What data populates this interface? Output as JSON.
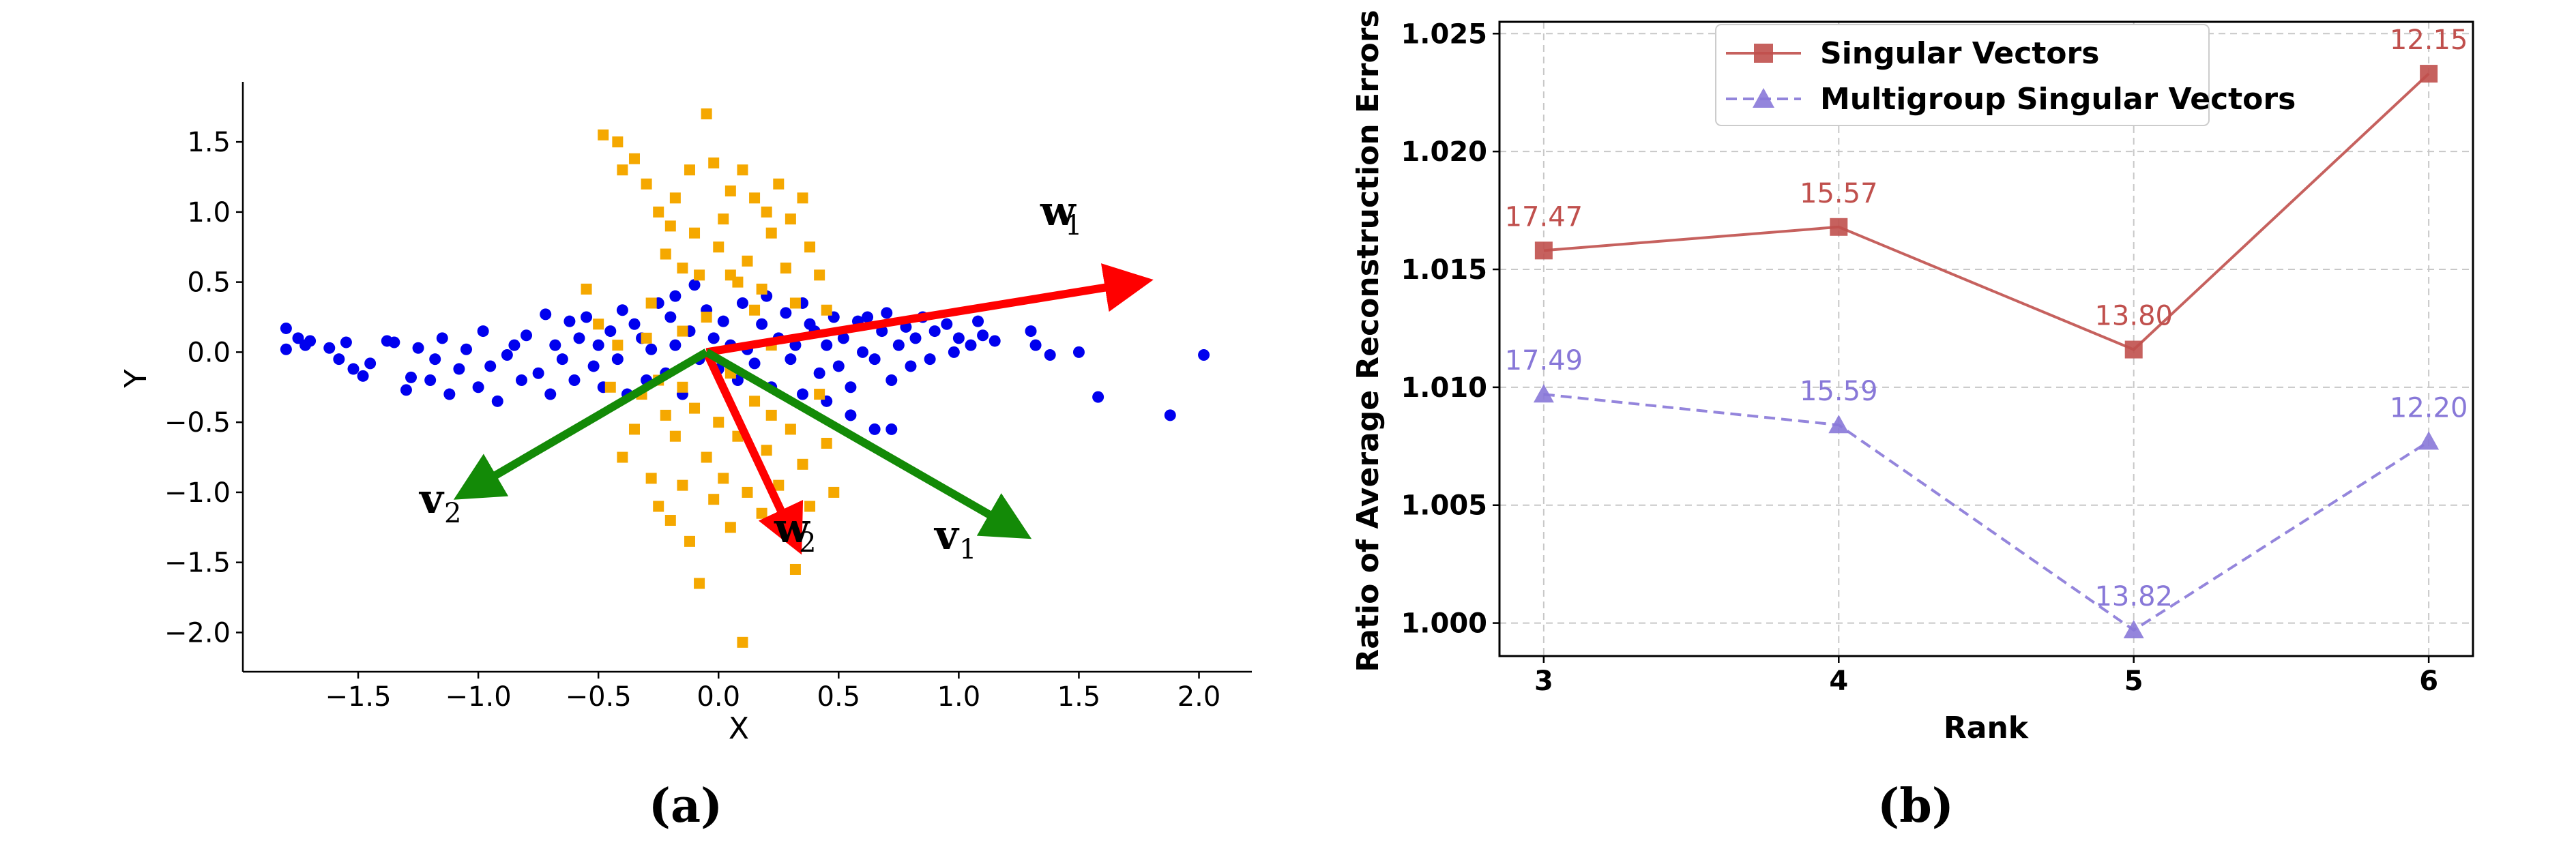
{
  "chart_data": [
    {
      "panel": "(a)",
      "type": "scatter",
      "xlabel": "X",
      "ylabel": "Y",
      "xlim": [
        -1.98,
        2.22
      ],
      "ylim": [
        -2.28,
        1.88
      ],
      "x_ticks": [
        -1.5,
        -1.0,
        -0.5,
        0.0,
        0.5,
        1.0,
        1.5,
        2.0
      ],
      "x_tick_labels": [
        "−1.5",
        "−1.0",
        "−0.5",
        "0.0",
        "0.5",
        "1.0",
        "1.5",
        "2.0"
      ],
      "y_ticks": [
        1.5,
        1.0,
        0.5,
        0.0,
        -0.5,
        -1.0,
        -1.5,
        -2.0
      ],
      "y_tick_labels": [
        "1.5",
        "1.0",
        "0.5",
        "0.0",
        "−0.5",
        "−1.0",
        "−1.5",
        "−2.0"
      ],
      "grid": false,
      "series": [
        {
          "color": "#0000ee",
          "marker": "circle",
          "points": [
            [
              -1.8,
              0.17
            ],
            [
              -1.8,
              0.02
            ],
            [
              -1.75,
              0.1
            ],
            [
              -1.72,
              0.05
            ],
            [
              -1.7,
              0.08
            ],
            [
              -1.62,
              0.03
            ],
            [
              -1.58,
              -0.05
            ],
            [
              -1.55,
              0.07
            ],
            [
              -1.52,
              -0.12
            ],
            [
              -1.48,
              -0.17
            ],
            [
              -1.45,
              -0.08
            ],
            [
              -1.38,
              0.08
            ],
            [
              -1.35,
              0.07
            ],
            [
              -1.3,
              -0.27
            ],
            [
              -1.28,
              -0.18
            ],
            [
              -1.25,
              0.03
            ],
            [
              -1.2,
              -0.2
            ],
            [
              -1.18,
              -0.05
            ],
            [
              -1.15,
              0.1
            ],
            [
              -1.12,
              -0.3
            ],
            [
              -1.08,
              -0.12
            ],
            [
              -1.05,
              0.02
            ],
            [
              -1.0,
              -0.25
            ],
            [
              -0.98,
              0.15
            ],
            [
              -0.95,
              -0.1
            ],
            [
              -0.92,
              -0.35
            ],
            [
              -0.88,
              -0.02
            ],
            [
              -0.85,
              0.05
            ],
            [
              -0.82,
              -0.2
            ],
            [
              -0.8,
              0.12
            ],
            [
              -0.75,
              -0.15
            ],
            [
              -0.72,
              0.27
            ],
            [
              -0.7,
              -0.3
            ],
            [
              -0.68,
              0.05
            ],
            [
              -0.65,
              -0.05
            ],
            [
              -0.62,
              0.22
            ],
            [
              -0.6,
              -0.2
            ],
            [
              -0.58,
              0.1
            ],
            [
              -0.55,
              0.25
            ],
            [
              -0.52,
              -0.1
            ],
            [
              -0.5,
              0.05
            ],
            [
              -0.48,
              -0.25
            ],
            [
              -0.45,
              0.15
            ],
            [
              -0.42,
              -0.05
            ],
            [
              -0.4,
              0.3
            ],
            [
              -0.38,
              -0.3
            ],
            [
              -0.35,
              0.2
            ],
            [
              -0.32,
              0.1
            ],
            [
              -0.3,
              -0.2
            ],
            [
              -0.28,
              0.02
            ],
            [
              -0.25,
              0.35
            ],
            [
              -0.22,
              -0.15
            ],
            [
              -0.2,
              0.25
            ],
            [
              -0.18,
              0.05
            ],
            [
              -0.15,
              -0.3
            ],
            [
              -0.12,
              0.15
            ],
            [
              -0.1,
              0.48
            ],
            [
              -0.08,
              -0.05
            ],
            [
              -0.05,
              0.3
            ],
            [
              -0.02,
              0.1
            ],
            [
              0.0,
              -0.12
            ],
            [
              0.02,
              0.22
            ],
            [
              0.05,
              0.05
            ],
            [
              0.08,
              -0.2
            ],
            [
              0.1,
              0.35
            ],
            [
              0.12,
              0.02
            ],
            [
              0.15,
              -0.08
            ],
            [
              0.18,
              0.2
            ],
            [
              0.2,
              0.4
            ],
            [
              0.22,
              -0.25
            ],
            [
              0.25,
              0.1
            ],
            [
              0.28,
              0.28
            ],
            [
              0.3,
              -0.05
            ],
            [
              0.32,
              0.05
            ],
            [
              0.35,
              -0.3
            ],
            [
              0.38,
              0.2
            ],
            [
              0.4,
              0.15
            ],
            [
              0.42,
              -0.15
            ],
            [
              0.45,
              0.05
            ],
            [
              0.48,
              0.25
            ],
            [
              0.5,
              -0.1
            ],
            [
              0.52,
              0.1
            ],
            [
              0.55,
              -0.25
            ],
            [
              0.58,
              0.22
            ],
            [
              0.6,
              0.0
            ],
            [
              0.62,
              0.25
            ],
            [
              0.65,
              -0.05
            ],
            [
              0.68,
              0.15
            ],
            [
              0.7,
              0.28
            ],
            [
              0.72,
              -0.2
            ],
            [
              0.75,
              0.05
            ],
            [
              0.78,
              0.18
            ],
            [
              0.8,
              -0.1
            ],
            [
              0.82,
              0.1
            ],
            [
              0.85,
              0.25
            ],
            [
              0.88,
              -0.05
            ],
            [
              0.9,
              0.15
            ],
            [
              0.95,
              0.2
            ],
            [
              0.98,
              0.0
            ],
            [
              1.0,
              0.1
            ],
            [
              1.05,
              0.05
            ],
            [
              1.08,
              0.22
            ],
            [
              1.1,
              0.12
            ],
            [
              1.15,
              0.08
            ],
            [
              1.3,
              0.15
            ],
            [
              1.32,
              0.05
            ],
            [
              1.38,
              -0.02
            ],
            [
              1.5,
              0.0
            ],
            [
              1.58,
              -0.32
            ],
            [
              1.88,
              -0.45
            ],
            [
              2.02,
              -0.02
            ],
            [
              0.65,
              -0.55
            ],
            [
              0.72,
              -0.55
            ],
            [
              0.55,
              -0.45
            ],
            [
              0.45,
              -0.35
            ],
            [
              -0.18,
              0.4
            ],
            [
              0.35,
              0.35
            ]
          ]
        },
        {
          "color": "#f5a800",
          "marker": "square",
          "points": [
            [
              -0.48,
              1.55
            ],
            [
              -0.42,
              1.5
            ],
            [
              -0.4,
              1.3
            ],
            [
              -0.35,
              1.38
            ],
            [
              -0.3,
              1.2
            ],
            [
              -0.25,
              1.0
            ],
            [
              -0.22,
              0.7
            ],
            [
              -0.2,
              0.9
            ],
            [
              -0.18,
              1.1
            ],
            [
              -0.15,
              0.6
            ],
            [
              -0.12,
              1.3
            ],
            [
              -0.1,
              0.85
            ],
            [
              -0.08,
              0.55
            ],
            [
              -0.05,
              1.7
            ],
            [
              -0.02,
              1.35
            ],
            [
              0.0,
              0.75
            ],
            [
              0.02,
              0.95
            ],
            [
              0.05,
              1.15
            ],
            [
              0.08,
              0.5
            ],
            [
              0.1,
              1.3
            ],
            [
              0.12,
              0.65
            ],
            [
              0.15,
              1.1
            ],
            [
              0.18,
              0.45
            ],
            [
              0.2,
              1.0
            ],
            [
              0.22,
              0.85
            ],
            [
              0.25,
              1.2
            ],
            [
              0.28,
              0.6
            ],
            [
              0.3,
              0.95
            ],
            [
              0.32,
              0.35
            ],
            [
              0.35,
              1.1
            ],
            [
              0.38,
              0.75
            ],
            [
              -0.55,
              0.45
            ],
            [
              -0.5,
              0.2
            ],
            [
              0.42,
              0.55
            ],
            [
              0.45,
              0.3
            ],
            [
              -0.4,
              -0.75
            ],
            [
              -0.35,
              -0.55
            ],
            [
              -0.32,
              -0.3
            ],
            [
              -0.28,
              -0.9
            ],
            [
              -0.25,
              -1.1
            ],
            [
              -0.22,
              -0.45
            ],
            [
              -0.2,
              -1.2
            ],
            [
              -0.18,
              -0.6
            ],
            [
              -0.15,
              -0.95
            ],
            [
              -0.12,
              -1.35
            ],
            [
              -0.1,
              -0.4
            ],
            [
              -0.08,
              -1.65
            ],
            [
              -0.05,
              -0.75
            ],
            [
              -0.02,
              -1.05
            ],
            [
              0.0,
              -0.5
            ],
            [
              0.02,
              -0.9
            ],
            [
              0.05,
              -1.25
            ],
            [
              0.08,
              -0.6
            ],
            [
              0.1,
              -2.07
            ],
            [
              0.12,
              -1.0
            ],
            [
              0.15,
              -0.35
            ],
            [
              0.18,
              -1.15
            ],
            [
              0.2,
              -0.7
            ],
            [
              0.22,
              -0.45
            ],
            [
              0.25,
              -0.95
            ],
            [
              0.28,
              -1.28
            ],
            [
              0.3,
              -0.55
            ],
            [
              0.32,
              -1.55
            ],
            [
              0.35,
              -0.8
            ],
            [
              0.38,
              -1.1
            ],
            [
              0.42,
              -0.3
            ],
            [
              0.45,
              -0.65
            ],
            [
              0.48,
              -1.0
            ],
            [
              -0.45,
              -0.25
            ],
            [
              -0.3,
              0.1
            ],
            [
              -0.25,
              -0.2
            ],
            [
              -0.15,
              0.15
            ],
            [
              -0.05,
              0.25
            ],
            [
              0.05,
              -0.15
            ],
            [
              0.15,
              0.3
            ],
            [
              0.22,
              0.05
            ],
            [
              -0.42,
              0.05
            ],
            [
              -0.28,
              0.35
            ],
            [
              0.05,
              0.55
            ],
            [
              -0.15,
              -0.25
            ]
          ]
        }
      ],
      "arrows": [
        {
          "label": "w",
          "subscript": "1",
          "color": "#ff0000",
          "from": [
            -0.05,
            0.0
          ],
          "to": [
            1.75,
            0.5
          ]
        },
        {
          "label": "w",
          "subscript": "2",
          "color": "#ff0000",
          "from": [
            -0.05,
            0.0
          ],
          "to": [
            0.32,
            -1.35
          ]
        },
        {
          "label": "v",
          "subscript": "1",
          "color": "#138a07",
          "from": [
            -0.05,
            0.0
          ],
          "to": [
            1.25,
            -1.28
          ]
        },
        {
          "label": "v",
          "subscript": "2",
          "color": "#138a07",
          "from": [
            -0.05,
            0.0
          ],
          "to": [
            -1.05,
            -1.0
          ]
        }
      ]
    },
    {
      "panel": "(b)",
      "type": "line",
      "xlabel": "Rank",
      "ylabel": "Ratio of Average Reconstruction Errors",
      "x": [
        3,
        4,
        5,
        6
      ],
      "x_tick_labels": [
        "3",
        "4",
        "5",
        "6"
      ],
      "xlim": [
        2.85,
        6.15
      ],
      "ylim": [
        0.9986,
        1.0255
      ],
      "y_ticks": [
        1.0,
        1.005,
        1.01,
        1.015,
        1.02,
        1.025
      ],
      "y_tick_labels": [
        "1.000",
        "1.005",
        "1.010",
        "1.015",
        "1.020",
        "1.025"
      ],
      "grid": true,
      "legend": "top-center",
      "series": [
        {
          "name": "Singular Vectors",
          "color": "#c0504d",
          "marker": "square",
          "linestyle": "solid",
          "values": [
            1.0158,
            1.0168,
            1.0116,
            1.0233
          ],
          "labels": [
            "17.47",
            "15.57",
            "13.80",
            "12.15"
          ]
        },
        {
          "name": "Multigroup Singular Vectors",
          "color": "#8878d8",
          "marker": "triangle",
          "linestyle": "dashed",
          "values": [
            1.0097,
            1.0084,
            0.9997,
            1.0077
          ],
          "labels": [
            "17.49",
            "15.59",
            "13.82",
            "12.20"
          ]
        }
      ]
    }
  ]
}
